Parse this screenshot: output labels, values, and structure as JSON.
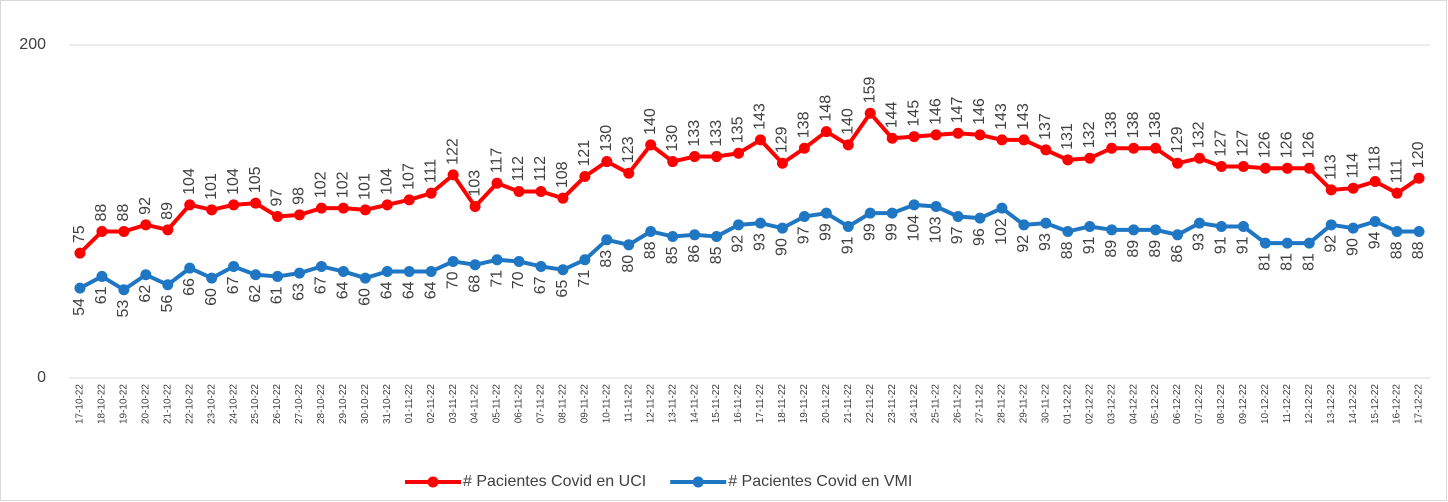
{
  "chart_data": {
    "type": "line",
    "categories": [
      "17-10-22",
      "18-10-22",
      "19-10-22",
      "20-10-22",
      "21-10-22",
      "22-10-22",
      "23-10-22",
      "24-10-22",
      "25-10-22",
      "26-10-22",
      "27-10-22",
      "28-10-22",
      "29-10-22",
      "30-10-22",
      "31-10-22",
      "01-11-22",
      "02-11-22",
      "03-11-22",
      "04-11-22",
      "05-11-22",
      "06-11-22",
      "07-11-22",
      "08-11-22",
      "09-11-22",
      "10-11-22",
      "11-11-22",
      "12-11-22",
      "13-11-22",
      "14-11-22",
      "15-11-22",
      "16-11-22",
      "17-11-22",
      "18-11-22",
      "19-11-22",
      "20-11-22",
      "21-11-22",
      "22-11-22",
      "23-11-22",
      "24-11-22",
      "25-11-22",
      "26-11-22",
      "27-11-22",
      "28-11-22",
      "29-11-22",
      "30-11-22",
      "01-12-22",
      "02-12-22",
      "03-12-22",
      "04-12-22",
      "05-12-22",
      "06-12-22",
      "07-12-22",
      "08-12-22",
      "09-12-22",
      "10-12-22",
      "11-12-22",
      "12-12-22",
      "13-12-22",
      "14-12-22",
      "15-12-22",
      "16-12-22",
      "17-12-22"
    ],
    "series": [
      {
        "name": "# Pacientes Covid en UCI",
        "color": "#ff0000",
        "values": [
          75,
          88,
          88,
          92,
          89,
          104,
          101,
          104,
          105,
          97,
          98,
          102,
          102,
          101,
          104,
          107,
          111,
          122,
          103,
          117,
          112,
          112,
          108,
          121,
          130,
          123,
          140,
          130,
          133,
          133,
          135,
          143,
          129,
          138,
          148,
          140,
          159,
          144,
          145,
          146,
          147,
          146,
          143,
          143,
          137,
          131,
          132,
          138,
          138,
          138,
          129,
          132,
          127,
          127,
          126,
          126,
          126,
          113,
          114,
          118,
          111,
          120
        ]
      },
      {
        "name": "# Pacientes Covid en VMI",
        "color": "#1f77c4",
        "values": [
          54,
          61,
          53,
          62,
          56,
          66,
          60,
          67,
          62,
          61,
          63,
          67,
          64,
          60,
          64,
          64,
          64,
          70,
          68,
          71,
          70,
          67,
          65,
          71,
          83,
          80,
          88,
          85,
          86,
          85,
          92,
          93,
          90,
          97,
          99,
          91,
          99,
          99,
          104,
          103,
          97,
          96,
          102,
          92,
          93,
          88,
          91,
          89,
          89,
          89,
          86,
          93,
          91,
          91,
          81,
          81,
          81,
          92,
          90,
          94,
          88,
          88
        ]
      }
    ],
    "ylim": [
      0,
      200
    ],
    "yticks": [
      0,
      200
    ],
    "grid": true,
    "legend": "bottom"
  }
}
